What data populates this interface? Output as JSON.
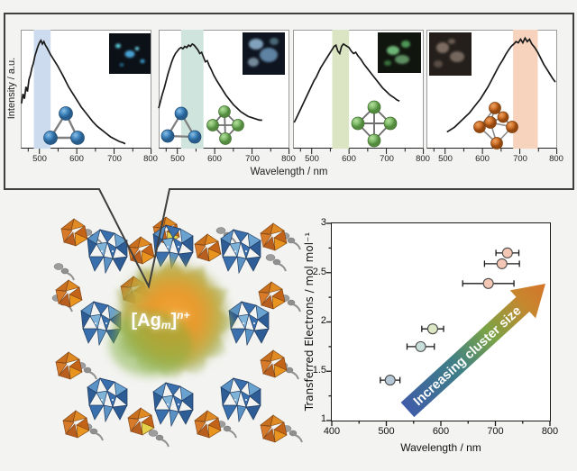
{
  "top_panels": {
    "y_label": "Intensity / a.u.",
    "x_label": "Wavelength / nm",
    "x_ticks": [
      "500",
      "600",
      "700",
      "800"
    ]
  },
  "structure": {
    "label_prefix": "[Ag",
    "label_sub": "m",
    "label_close": "]",
    "label_sup": "n+"
  },
  "scatter": {
    "y_label": "Transferred Electrons / mol mol⁻¹",
    "x_label": "Wavelength / nm",
    "x_ticks": [
      "400",
      "500",
      "600",
      "700",
      "800"
    ],
    "y_ticks": [
      "3",
      "2.5",
      "2",
      "1.5",
      "1"
    ],
    "arrow_label": "Increasing cluster size"
  },
  "chart_data": [
    {
      "type": "line",
      "title": "Emission spectrum, Ag3 cluster",
      "xlabel": "Wavelength / nm",
      "ylabel": "Intensity / a.u.",
      "xlim": [
        450,
        800
      ],
      "highlight_band_nm": [
        485,
        530
      ],
      "highlight_color": "#ccdcee",
      "cluster_icon": "ag3-triangle-blue",
      "inset_emission": "blue-cyan luminescence micrograph",
      "x": [
        452,
        456,
        460,
        464,
        468,
        472,
        476,
        480,
        484,
        488,
        492,
        496,
        500,
        504,
        508,
        512,
        516,
        520,
        525,
        530,
        536,
        542,
        548,
        555,
        562,
        570,
        578,
        586,
        594,
        602,
        612,
        622,
        632,
        642,
        654,
        666,
        678,
        690,
        702,
        714,
        724,
        730
      ],
      "y": [
        38,
        46,
        42,
        52,
        48,
        58,
        62,
        68,
        72,
        78,
        82,
        86,
        89,
        91,
        88,
        90,
        87,
        85,
        82,
        79,
        76,
        73,
        70,
        66,
        62,
        57,
        52,
        48,
        44,
        40,
        35,
        31,
        27,
        23,
        19,
        16,
        13,
        10,
        8,
        6,
        5,
        4
      ]
    },
    {
      "type": "line",
      "title": "Emission spectrum, Ag3 + Ag4 clusters",
      "xlabel": "Wavelength / nm",
      "ylabel": "Intensity / a.u.",
      "xlim": [
        450,
        800
      ],
      "highlight_band_nm": [
        510,
        570
      ],
      "highlight_color": "#cfe4dd",
      "cluster_icon": "ag3-triangle-blue + ag4-rhombus-green",
      "inset_emission": "pale blue luminescence micrograph",
      "x": [
        450,
        455,
        460,
        465,
        470,
        475,
        480,
        485,
        490,
        495,
        500,
        505,
        510,
        515,
        520,
        525,
        530,
        535,
        540,
        545,
        550,
        555,
        560,
        565,
        570,
        575,
        580,
        585,
        590,
        597,
        604,
        612,
        620,
        630,
        640,
        650,
        660,
        670,
        680,
        690,
        700,
        710,
        720,
        727
      ],
      "y": [
        34,
        40,
        46,
        51,
        57,
        63,
        68,
        73,
        77,
        80,
        82,
        84,
        85,
        84,
        86,
        85,
        87,
        86,
        88,
        87,
        85,
        83,
        80,
        81,
        77,
        73,
        74,
        70,
        67,
        62,
        58,
        54,
        50,
        45,
        41,
        37,
        34,
        31,
        29,
        27,
        26,
        25,
        24,
        24
      ]
    },
    {
      "type": "line",
      "title": "Emission spectrum, Ag4 cluster",
      "xlabel": "Wavelength / nm",
      "ylabel": "Intensity / a.u.",
      "xlim": [
        450,
        800
      ],
      "highlight_band_nm": [
        555,
        600
      ],
      "highlight_color": "#dbe5c3",
      "cluster_icon": "ag4-rhombus-green",
      "inset_emission": "green luminescence micrograph",
      "x": [
        453,
        458,
        464,
        470,
        476,
        482,
        488,
        494,
        500,
        506,
        512,
        518,
        524,
        530,
        536,
        542,
        548,
        554,
        560,
        565,
        570,
        575,
        580,
        585,
        590,
        595,
        600,
        606,
        612,
        618,
        624,
        632,
        640,
        650,
        660,
        670,
        680,
        690,
        700,
        710,
        720,
        728,
        735
      ],
      "y": [
        22,
        25,
        29,
        33,
        37,
        41,
        45,
        49,
        53,
        57,
        60,
        64,
        68,
        71,
        74,
        77,
        80,
        83,
        86,
        87,
        82,
        80,
        86,
        88,
        87,
        86,
        85,
        82,
        80,
        81,
        78,
        75,
        71,
        67,
        63,
        59,
        55,
        51,
        48,
        45,
        43,
        41,
        40
      ]
    },
    {
      "type": "line",
      "title": "Emission spectrum, Ag6 cluster",
      "xlabel": "Wavelength / nm",
      "ylabel": "Intensity / a.u.",
      "xlim": [
        450,
        800
      ],
      "highlight_band_nm": [
        682,
        748
      ],
      "highlight_color": "#f7d3bd",
      "cluster_icon": "ag6-octahedron-orange",
      "inset_emission": "faint red-white luminescence micrograph",
      "x": [
        505,
        515,
        525,
        535,
        545,
        555,
        565,
        575,
        585,
        595,
        605,
        615,
        625,
        635,
        645,
        655,
        662,
        670,
        677,
        684,
        690,
        696,
        702,
        708,
        714,
        720,
        726,
        732,
        740,
        748,
        756,
        764,
        772,
        780,
        788,
        795
      ],
      "y": [
        14,
        16,
        18,
        21,
        24,
        27,
        30,
        34,
        38,
        42,
        47,
        52,
        58,
        64,
        70,
        75,
        79,
        83,
        86,
        88,
        90,
        89,
        92,
        89,
        93,
        90,
        92,
        88,
        85,
        81,
        76,
        71,
        67,
        63,
        59,
        56
      ]
    },
    {
      "type": "scatter",
      "title": "Transferred electrons vs emission wavelength",
      "xlabel": "Wavelength / nm",
      "ylabel": "Transferred Electrons / mol mol⁻¹",
      "xlim": [
        400,
        800
      ],
      "ylim": [
        1,
        3
      ],
      "annotation": "Increasing cluster size",
      "points": [
        {
          "x": 507,
          "y": 1.41,
          "xerr": 18,
          "color": "#b6c8d7"
        },
        {
          "x": 563,
          "y": 1.75,
          "xerr": 25,
          "color": "#c8deda"
        },
        {
          "x": 585,
          "y": 1.93,
          "xerr": 20,
          "color": "#dce8c3"
        },
        {
          "x": 687,
          "y": 2.39,
          "xerr": 47,
          "color": "#f4c6b4"
        },
        {
          "x": 712,
          "y": 2.59,
          "xerr": 32,
          "color": "#f4c6b4"
        },
        {
          "x": 722,
          "y": 2.7,
          "xerr": 21,
          "color": "#f4c6b4"
        }
      ]
    }
  ]
}
